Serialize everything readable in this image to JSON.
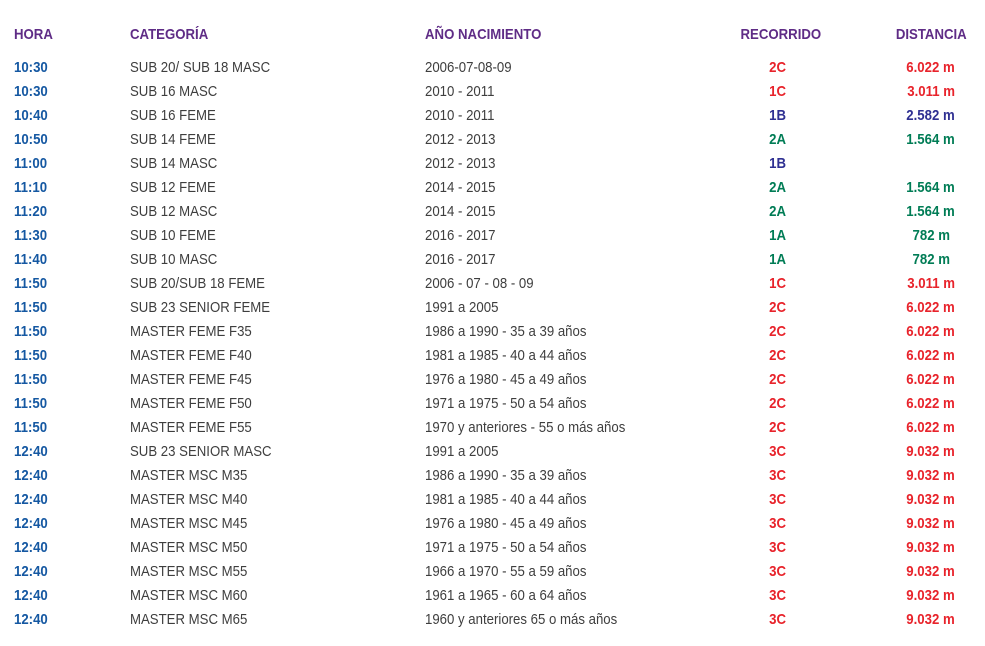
{
  "table": {
    "headers": {
      "hora": "HORA",
      "categoria": "CATEGORÍA",
      "ano": "AÑO NACIMIENTO",
      "recorrido": "RECORRIDO",
      "distancia": "DISTANCIA"
    },
    "colors": {
      "header": "#5F2C86",
      "time": "#1558A2",
      "body": "#3E3E3E",
      "red": "#E8232B",
      "green": "#007C55",
      "navy": "#2F3092"
    },
    "rows": [
      {
        "hora": "10:30",
        "categoria": "SUB 20/ SUB 18 MASC",
        "ano": "2006-07-08-09",
        "recorrido": "2C",
        "recorrido_color": "red",
        "distancia": "6.022 m",
        "distancia_color": "red"
      },
      {
        "hora": "10:30",
        "categoria": "SUB 16 MASC",
        "ano": "2010 - 2011",
        "recorrido": "1C",
        "recorrido_color": "red",
        "distancia": "3.011 m",
        "distancia_color": "red"
      },
      {
        "hora": "10:40",
        "categoria": "SUB 16 FEME",
        "ano": "2010 - 2011",
        "recorrido": "1B",
        "recorrido_color": "navy",
        "distancia": "2.582 m",
        "distancia_color": "navy"
      },
      {
        "hora": "10:50",
        "categoria": "SUB 14 FEME",
        "ano": "2012 - 2013",
        "recorrido": "2A",
        "recorrido_color": "green",
        "distancia": "1.564 m",
        "distancia_color": "green"
      },
      {
        "hora": "11:00",
        "categoria": "SUB 14 MASC",
        "ano": "2012 - 2013",
        "recorrido": "1B",
        "recorrido_color": "navy",
        "distancia": "",
        "distancia_color": ""
      },
      {
        "hora": "11:10",
        "categoria": "SUB 12 FEME",
        "ano": "2014 - 2015",
        "recorrido": "2A",
        "recorrido_color": "green",
        "distancia": "1.564 m",
        "distancia_color": "green"
      },
      {
        "hora": "11:20",
        "categoria": "SUB 12 MASC",
        "ano": "2014 - 2015",
        "recorrido": "2A",
        "recorrido_color": "green",
        "distancia": "1.564 m",
        "distancia_color": "green"
      },
      {
        "hora": "11:30",
        "categoria": "SUB 10 FEME",
        "ano": "2016 - 2017",
        "recorrido": "1A",
        "recorrido_color": "green",
        "distancia": "782 m",
        "distancia_color": "green"
      },
      {
        "hora": "11:40",
        "categoria": "SUB 10 MASC",
        "ano": "2016 - 2017",
        "recorrido": "1A",
        "recorrido_color": "green",
        "distancia": "782 m",
        "distancia_color": "green"
      },
      {
        "hora": "11:50",
        "categoria": "SUB 20/SUB 18 FEME",
        "ano": "2006 - 07 - 08 - 09",
        "recorrido": "1C",
        "recorrido_color": "red",
        "distancia": "3.011 m",
        "distancia_color": "red"
      },
      {
        "hora": "11:50",
        "categoria": "SUB 23 SENIOR FEME",
        "ano": "1991 a 2005",
        "recorrido": "2C",
        "recorrido_color": "red",
        "distancia": "6.022 m",
        "distancia_color": "red"
      },
      {
        "hora": "11:50",
        "categoria": "MASTER FEME F35",
        "ano": "1986 a 1990 - 35 a 39 años",
        "recorrido": "2C",
        "recorrido_color": "red",
        "distancia": "6.022 m",
        "distancia_color": "red"
      },
      {
        "hora": "11:50",
        "categoria": "MASTER FEME F40",
        "ano": "1981 a 1985 - 40 a 44 años",
        "recorrido": "2C",
        "recorrido_color": "red",
        "distancia": "6.022 m",
        "distancia_color": "red"
      },
      {
        "hora": "11:50",
        "categoria": "MASTER FEME F45",
        "ano": "1976 a 1980 - 45 a 49 años",
        "recorrido": "2C",
        "recorrido_color": "red",
        "distancia": "6.022 m",
        "distancia_color": "red"
      },
      {
        "hora": "11:50",
        "categoria": "MASTER FEME F50",
        "ano": "1971 a 1975 - 50 a 54 años",
        "recorrido": "2C",
        "recorrido_color": "red",
        "distancia": "6.022 m",
        "distancia_color": "red"
      },
      {
        "hora": "11:50",
        "categoria": "MASTER FEME F55",
        "ano": "1970 y anteriores - 55 o más años",
        "recorrido": "2C",
        "recorrido_color": "red",
        "distancia": "6.022 m",
        "distancia_color": "red"
      },
      {
        "hora": "12:40",
        "categoria": "SUB 23 SENIOR MASC",
        "ano": "1991 a 2005",
        "recorrido": "3C",
        "recorrido_color": "red",
        "distancia": "9.032 m",
        "distancia_color": "red"
      },
      {
        "hora": "12:40",
        "categoria": "MASTER MSC M35",
        "ano": "1986 a 1990 - 35 a 39 años",
        "recorrido": "3C",
        "recorrido_color": "red",
        "distancia": "9.032 m",
        "distancia_color": "red"
      },
      {
        "hora": "12:40",
        "categoria": "MASTER MSC M40",
        "ano": "1981 a 1985 - 40 a 44 años",
        "recorrido": "3C",
        "recorrido_color": "red",
        "distancia": "9.032 m",
        "distancia_color": "red"
      },
      {
        "hora": "12:40",
        "categoria": "MASTER MSC M45",
        "ano": "1976 a 1980 - 45 a 49 años",
        "recorrido": "3C",
        "recorrido_color": "red",
        "distancia": "9.032 m",
        "distancia_color": "red"
      },
      {
        "hora": "12:40",
        "categoria": "MASTER MSC M50",
        "ano": "1971 a 1975 - 50 a 54 años",
        "recorrido": "3C",
        "recorrido_color": "red",
        "distancia": "9.032 m",
        "distancia_color": "red"
      },
      {
        "hora": "12:40",
        "categoria": "MASTER MSC M55",
        "ano": "1966 a 1970 - 55 a 59 años",
        "recorrido": "3C",
        "recorrido_color": "red",
        "distancia": "9.032 m",
        "distancia_color": "red"
      },
      {
        "hora": "12:40",
        "categoria": "MASTER MSC M60",
        "ano": "1961 a 1965 - 60 a 64 años",
        "recorrido": "3C",
        "recorrido_color": "red",
        "distancia": "9.032 m",
        "distancia_color": "red"
      },
      {
        "hora": "12:40",
        "categoria": "MASTER MSC M65",
        "ano": "1960 y anteriores 65 o más años",
        "recorrido": "3C",
        "recorrido_color": "red",
        "distancia": "9.032 m",
        "distancia_color": "red"
      }
    ]
  }
}
